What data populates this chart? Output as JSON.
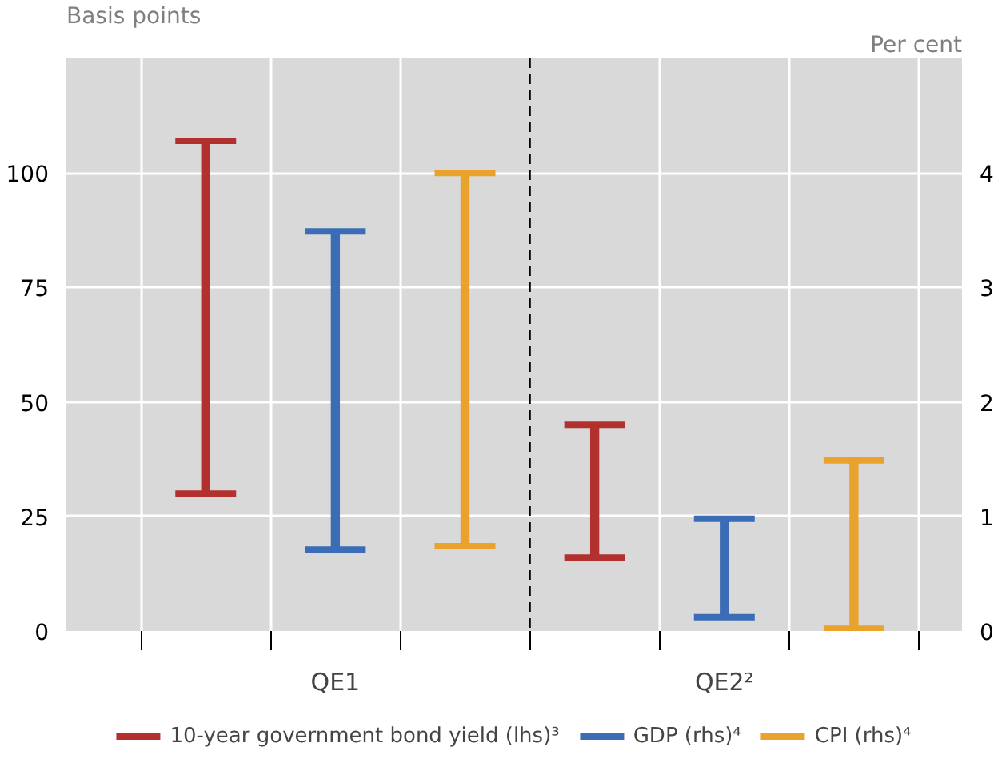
{
  "chart_data": {
    "type": "bar",
    "categories": [
      "QE1",
      "QE2²"
    ],
    "ylabel": "Basis points",
    "y2label": "Per cent",
    "ylim": [
      0,
      125
    ],
    "yticks": [
      0,
      25,
      50,
      75,
      100
    ],
    "y2lim": [
      0,
      5
    ],
    "y2ticks": [
      0,
      1,
      2,
      3,
      4
    ],
    "grid": true,
    "legend": "bottom",
    "ref_lines": [
      {
        "axis": "x",
        "value": "QE2²",
        "color": "#000000",
        "line_style": "dashed"
      }
    ],
    "series": [
      {
        "name": "10-year government bond yield (lhs)³",
        "color": "#b2302e",
        "base": [
          30,
          16
        ],
        "values": [
          77,
          29
        ],
        "errors": [
          [
            30,
            107
          ],
          [
            16,
            45
          ]
        ]
      },
      {
        "name": "GDP (rhs)⁴",
        "color": "#3a6db5",
        "axis": "y2",
        "base": [
          0.71,
          0.12
        ],
        "values": [
          2.78,
          0.86
        ],
        "errors": [
          [
            0.71,
            3.49
          ],
          [
            0.12,
            0.98
          ]
        ]
      },
      {
        "name": "CPI (rhs)⁴",
        "color": "#e9a22b",
        "axis": "y2",
        "base": [
          0.74,
          0.02
        ],
        "values": [
          3.26,
          1.47
        ],
        "errors": [
          [
            0.74,
            4.0
          ],
          [
            0.02,
            1.49
          ]
        ]
      }
    ]
  }
}
